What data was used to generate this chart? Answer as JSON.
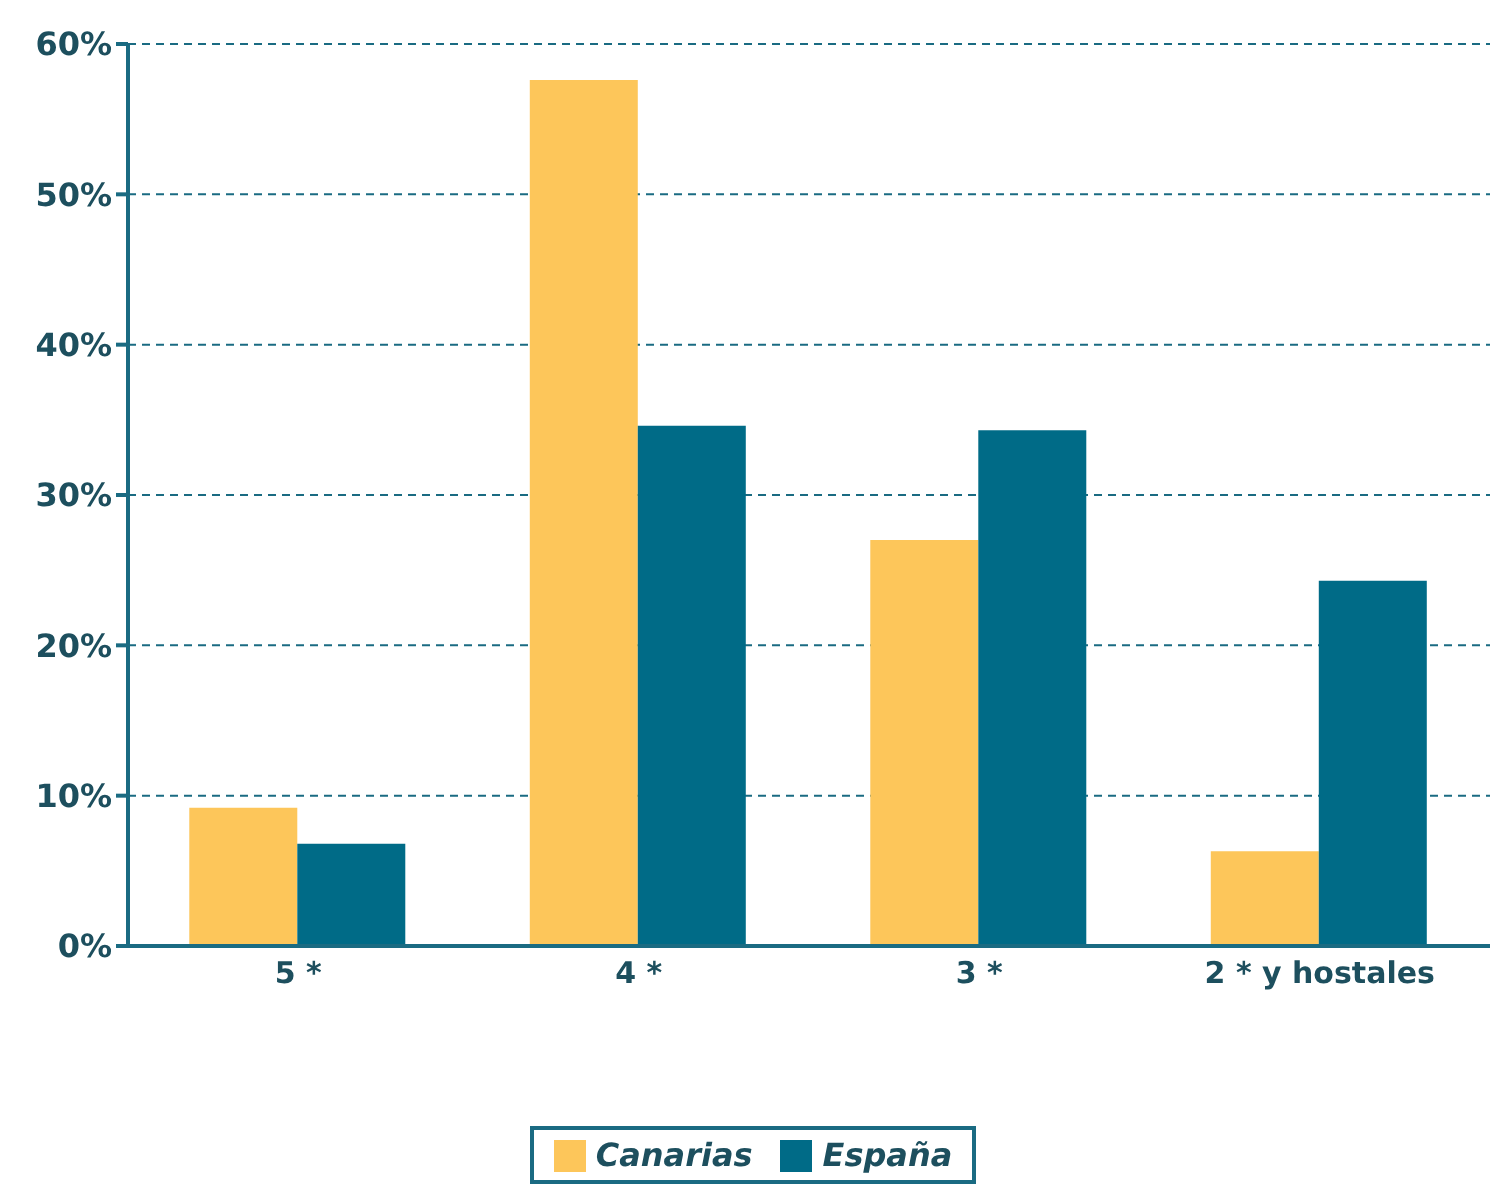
{
  "chart_data": {
    "type": "bar",
    "categories": [
      "5 *",
      "4 *",
      "3 *",
      "2 * y hostales"
    ],
    "series": [
      {
        "name": "Canarias",
        "color": "#fdc65a",
        "values": [
          9.2,
          57.6,
          27.0,
          6.3
        ]
      },
      {
        "name": "España",
        "color": "#006b87",
        "values": [
          6.8,
          34.6,
          34.3,
          24.3
        ]
      }
    ],
    "ylim": [
      0,
      60
    ],
    "yticks": [
      {
        "value": 0,
        "label": "0%"
      },
      {
        "value": 10,
        "label": "10%"
      },
      {
        "value": 20,
        "label": "20%"
      },
      {
        "value": 30,
        "label": "30%"
      },
      {
        "value": 40,
        "label": "40%"
      },
      {
        "value": 50,
        "label": "50%"
      },
      {
        "value": 60,
        "label": "60%"
      }
    ],
    "grid": "y",
    "legend": "bottom"
  }
}
